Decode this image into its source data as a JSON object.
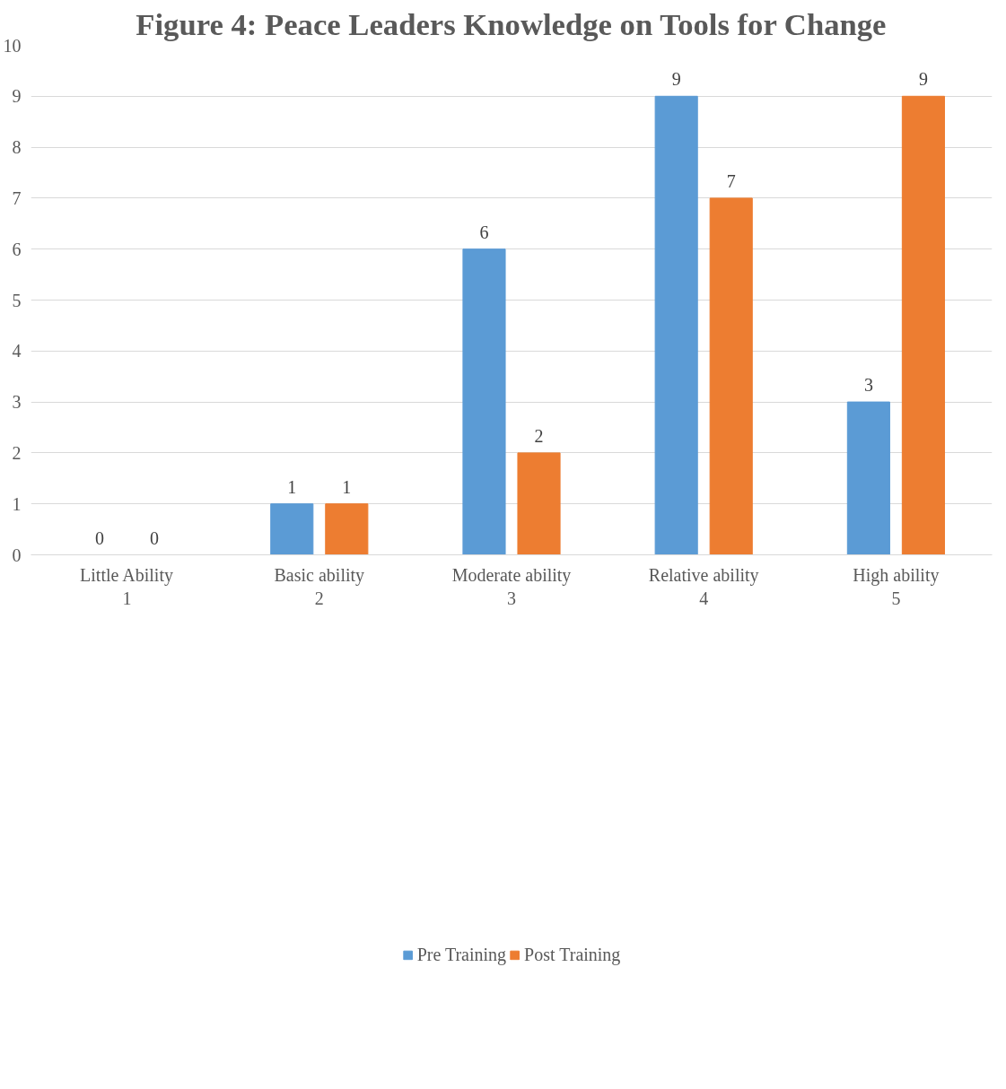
{
  "chart_data": {
    "type": "bar",
    "title": "Figure 4: Peace Leaders Knowledge on Tools for Change",
    "categories": [
      "Little Ability\n1",
      "Basic ability\n2",
      "Moderate ability\n3",
      "Relative ability\n4",
      "High ability\n5"
    ],
    "series": [
      {
        "name": "Pre Training",
        "color": "#5b9bd5",
        "values": [
          0,
          1,
          6,
          9,
          3
        ]
      },
      {
        "name": "Post Training",
        "color": "#ed7d31",
        "values": [
          0,
          1,
          2,
          7,
          9
        ]
      }
    ],
    "ylim": [
      0,
      10
    ],
    "yticks": [
      0,
      1,
      2,
      3,
      4,
      5,
      6,
      7,
      8,
      9,
      10
    ],
    "grid": "y",
    "legend": "bottom",
    "data_labels": true
  }
}
